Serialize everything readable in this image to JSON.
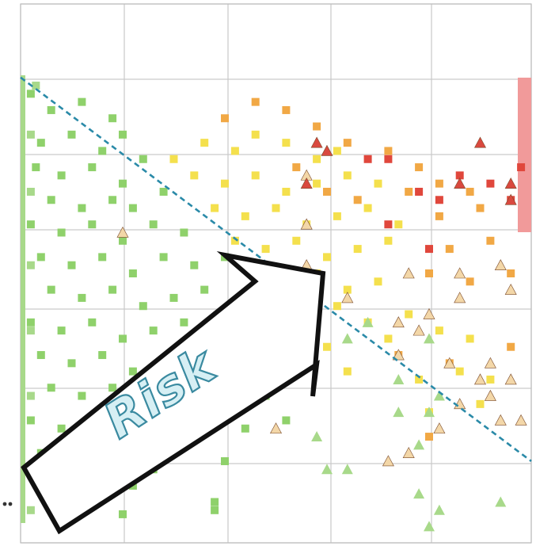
{
  "chart_data": {
    "type": "scatter",
    "title": "",
    "xlabel": "",
    "ylabel": "",
    "grid": true,
    "xlim": [
      0,
      5
    ],
    "ylim": [
      0,
      6.6
    ],
    "colors": {
      "green": "#8fd16b",
      "light_green": "#a8d98a",
      "yellow": "#f4e04d",
      "orange": "#f1a845",
      "red": "#e0473c",
      "triangle_fill_light": "#f3d7a8",
      "triangle_fill_red": "#d9493f",
      "risk_line": "#2a8aa8",
      "red_band": "#f19a9a"
    },
    "annotation": {
      "text": "Risk",
      "arrow_direction": "up-right"
    },
    "threshold_line": {
      "type": "dashed",
      "from": [
        0,
        5.7
      ],
      "to": [
        5,
        1.0
      ]
    },
    "series": [
      {
        "marker": "square",
        "points": [
          [
            0.1,
            5.5,
            "green"
          ],
          [
            0.3,
            5.3,
            "green"
          ],
          [
            0.6,
            5.4,
            "green"
          ],
          [
            0.9,
            5.2,
            "green"
          ],
          [
            0.2,
            4.9,
            "green"
          ],
          [
            0.5,
            5.0,
            "green"
          ],
          [
            0.8,
            4.8,
            "green"
          ],
          [
            1.0,
            5.0,
            "green"
          ],
          [
            0.15,
            4.6,
            "green"
          ],
          [
            0.4,
            4.5,
            "green"
          ],
          [
            0.7,
            4.6,
            "green"
          ],
          [
            1.0,
            4.4,
            "green"
          ],
          [
            1.2,
            4.7,
            "green"
          ],
          [
            0.3,
            4.2,
            "green"
          ],
          [
            0.6,
            4.1,
            "green"
          ],
          [
            0.9,
            4.2,
            "green"
          ],
          [
            1.1,
            4.1,
            "green"
          ],
          [
            1.4,
            4.3,
            "green"
          ],
          [
            0.1,
            3.9,
            "green"
          ],
          [
            0.4,
            3.8,
            "green"
          ],
          [
            0.7,
            3.9,
            "green"
          ],
          [
            1.0,
            3.7,
            "green"
          ],
          [
            1.3,
            3.9,
            "green"
          ],
          [
            1.6,
            3.8,
            "green"
          ],
          [
            0.2,
            3.5,
            "green"
          ],
          [
            0.5,
            3.4,
            "green"
          ],
          [
            0.8,
            3.5,
            "green"
          ],
          [
            1.1,
            3.3,
            "green"
          ],
          [
            1.4,
            3.5,
            "green"
          ],
          [
            1.7,
            3.4,
            "green"
          ],
          [
            2.0,
            3.5,
            "green"
          ],
          [
            0.3,
            3.1,
            "green"
          ],
          [
            0.6,
            3.0,
            "green"
          ],
          [
            0.9,
            3.1,
            "green"
          ],
          [
            1.2,
            2.9,
            "green"
          ],
          [
            1.5,
            3.0,
            "green"
          ],
          [
            1.8,
            3.1,
            "green"
          ],
          [
            2.1,
            2.9,
            "green"
          ],
          [
            0.1,
            2.7,
            "green"
          ],
          [
            0.4,
            2.6,
            "green"
          ],
          [
            0.7,
            2.7,
            "green"
          ],
          [
            1.0,
            2.5,
            "green"
          ],
          [
            1.3,
            2.6,
            "green"
          ],
          [
            1.6,
            2.7,
            "green"
          ],
          [
            1.9,
            2.5,
            "green"
          ],
          [
            2.2,
            2.6,
            "green"
          ],
          [
            0.2,
            2.3,
            "green"
          ],
          [
            0.5,
            2.2,
            "green"
          ],
          [
            0.8,
            2.3,
            "green"
          ],
          [
            1.1,
            2.1,
            "green"
          ],
          [
            1.4,
            2.2,
            "green"
          ],
          [
            1.7,
            2.3,
            "green"
          ],
          [
            2.0,
            2.1,
            "green"
          ],
          [
            2.3,
            2.2,
            "green"
          ],
          [
            0.3,
            1.9,
            "green"
          ],
          [
            0.6,
            1.8,
            "green"
          ],
          [
            0.9,
            1.9,
            "green"
          ],
          [
            1.2,
            1.7,
            "green"
          ],
          [
            1.5,
            1.8,
            "green"
          ],
          [
            1.8,
            1.9,
            "green"
          ],
          [
            2.1,
            1.7,
            "green"
          ],
          [
            2.4,
            1.8,
            "green"
          ],
          [
            0.1,
            1.5,
            "green"
          ],
          [
            0.4,
            1.4,
            "green"
          ],
          [
            0.7,
            1.5,
            "green"
          ],
          [
            1.0,
            1.3,
            "green"
          ],
          [
            1.6,
            1.5,
            "green"
          ],
          [
            2.2,
            1.4,
            "green"
          ],
          [
            2.6,
            1.5,
            "green"
          ],
          [
            0.2,
            1.1,
            "green"
          ],
          [
            0.5,
            1.0,
            "green"
          ],
          [
            0.9,
            1.1,
            "green"
          ],
          [
            1.3,
            0.9,
            "green"
          ],
          [
            2.0,
            1.0,
            "green"
          ],
          [
            0.3,
            0.7,
            "green"
          ],
          [
            0.6,
            0.6,
            "green"
          ],
          [
            1.1,
            0.7,
            "green"
          ],
          [
            1.9,
            0.5,
            "green"
          ],
          [
            0.4,
            0.3,
            "green"
          ],
          [
            1.0,
            0.35,
            "green"
          ],
          [
            1.9,
            0.4,
            "green"
          ],
          [
            1.5,
            4.7,
            "yellow"
          ],
          [
            1.8,
            4.9,
            "yellow"
          ],
          [
            2.1,
            4.8,
            "yellow"
          ],
          [
            2.3,
            5.0,
            "yellow"
          ],
          [
            2.6,
            4.9,
            "yellow"
          ],
          [
            2.9,
            4.7,
            "yellow"
          ],
          [
            3.1,
            4.8,
            "yellow"
          ],
          [
            1.7,
            4.5,
            "yellow"
          ],
          [
            2.0,
            4.4,
            "yellow"
          ],
          [
            2.3,
            4.5,
            "yellow"
          ],
          [
            2.6,
            4.3,
            "yellow"
          ],
          [
            2.9,
            4.4,
            "yellow"
          ],
          [
            3.2,
            4.5,
            "yellow"
          ],
          [
            3.5,
            4.4,
            "yellow"
          ],
          [
            1.9,
            4.1,
            "yellow"
          ],
          [
            2.2,
            4.0,
            "yellow"
          ],
          [
            2.5,
            4.1,
            "yellow"
          ],
          [
            2.8,
            3.9,
            "yellow"
          ],
          [
            3.1,
            4.0,
            "yellow"
          ],
          [
            3.4,
            4.1,
            "yellow"
          ],
          [
            3.7,
            3.9,
            "yellow"
          ],
          [
            2.1,
            3.7,
            "yellow"
          ],
          [
            2.4,
            3.6,
            "yellow"
          ],
          [
            2.7,
            3.7,
            "yellow"
          ],
          [
            3.0,
            3.5,
            "yellow"
          ],
          [
            3.3,
            3.6,
            "yellow"
          ],
          [
            3.6,
            3.7,
            "yellow"
          ],
          [
            2.3,
            3.3,
            "yellow"
          ],
          [
            2.6,
            3.2,
            "yellow"
          ],
          [
            2.9,
            3.3,
            "yellow"
          ],
          [
            3.2,
            3.1,
            "yellow"
          ],
          [
            3.5,
            3.2,
            "yellow"
          ],
          [
            2.5,
            2.9,
            "yellow"
          ],
          [
            2.8,
            2.8,
            "yellow"
          ],
          [
            3.1,
            2.9,
            "yellow"
          ],
          [
            3.4,
            2.7,
            "yellow"
          ],
          [
            3.8,
            2.8,
            "yellow"
          ],
          [
            2.7,
            2.5,
            "yellow"
          ],
          [
            3.0,
            2.4,
            "yellow"
          ],
          [
            3.6,
            2.5,
            "yellow"
          ],
          [
            4.1,
            2.6,
            "yellow"
          ],
          [
            4.4,
            2.5,
            "yellow"
          ],
          [
            3.2,
            2.1,
            "yellow"
          ],
          [
            3.9,
            2.0,
            "yellow"
          ],
          [
            4.3,
            2.1,
            "yellow"
          ],
          [
            4.6,
            2.0,
            "yellow"
          ],
          [
            4.0,
            1.6,
            "yellow"
          ],
          [
            4.5,
            1.7,
            "yellow"
          ],
          [
            2.0,
            5.2,
            "orange"
          ],
          [
            2.3,
            5.4,
            "orange"
          ],
          [
            2.6,
            5.3,
            "orange"
          ],
          [
            2.9,
            5.1,
            "orange"
          ],
          [
            3.2,
            4.9,
            "orange"
          ],
          [
            3.6,
            4.8,
            "orange"
          ],
          [
            3.9,
            4.6,
            "orange"
          ],
          [
            2.7,
            4.6,
            "orange"
          ],
          [
            3.0,
            4.3,
            "orange"
          ],
          [
            3.3,
            4.2,
            "orange"
          ],
          [
            3.8,
            4.3,
            "orange"
          ],
          [
            4.1,
            4.4,
            "orange"
          ],
          [
            4.4,
            4.3,
            "orange"
          ],
          [
            4.1,
            4.0,
            "orange"
          ],
          [
            4.5,
            4.1,
            "orange"
          ],
          [
            4.2,
            3.6,
            "orange"
          ],
          [
            4.6,
            3.7,
            "orange"
          ],
          [
            4.0,
            3.3,
            "orange"
          ],
          [
            4.4,
            3.2,
            "orange"
          ],
          [
            4.8,
            3.3,
            "orange"
          ],
          [
            3.7,
            2.3,
            "orange"
          ],
          [
            4.2,
            2.2,
            "orange"
          ],
          [
            4.8,
            2.4,
            "orange"
          ],
          [
            4.0,
            1.3,
            "orange"
          ],
          [
            3.4,
            4.7,
            "red"
          ],
          [
            3.6,
            4.7,
            "red"
          ],
          [
            3.9,
            4.3,
            "red"
          ],
          [
            4.1,
            4.2,
            "red"
          ],
          [
            4.3,
            4.5,
            "red"
          ],
          [
            4.6,
            4.4,
            "red"
          ],
          [
            4.8,
            4.2,
            "red"
          ],
          [
            4.9,
            4.6,
            "red"
          ],
          [
            3.6,
            3.9,
            "red"
          ],
          [
            4.0,
            3.6,
            "red"
          ],
          [
            0.15,
            5.6,
            "light_green"
          ],
          [
            0.1,
            5.0,
            "light_green"
          ],
          [
            0.1,
            4.3,
            "light_green"
          ],
          [
            0.1,
            3.4,
            "light_green"
          ],
          [
            0.1,
            2.6,
            "light_green"
          ],
          [
            0.1,
            1.8,
            "light_green"
          ],
          [
            0.1,
            0.9,
            "light_green"
          ],
          [
            0.1,
            0.4,
            "light_green"
          ]
        ]
      },
      {
        "marker": "triangle",
        "points": [
          [
            1.0,
            3.8,
            "triangle_fill_light"
          ],
          [
            2.8,
            4.5,
            "triangle_fill_light"
          ],
          [
            2.8,
            3.9,
            "triangle_fill_light"
          ],
          [
            2.8,
            3.4,
            "triangle_fill_light"
          ],
          [
            3.2,
            3.0,
            "triangle_fill_light"
          ],
          [
            3.8,
            3.3,
            "triangle_fill_light"
          ],
          [
            4.3,
            3.3,
            "triangle_fill_light"
          ],
          [
            4.7,
            3.4,
            "triangle_fill_light"
          ],
          [
            4.3,
            3.0,
            "triangle_fill_light"
          ],
          [
            4.8,
            3.1,
            "triangle_fill_light"
          ],
          [
            3.7,
            2.7,
            "triangle_fill_light"
          ],
          [
            3.9,
            2.6,
            "triangle_fill_light"
          ],
          [
            4.0,
            2.8,
            "triangle_fill_light"
          ],
          [
            3.7,
            2.3,
            "triangle_fill_light"
          ],
          [
            4.2,
            2.2,
            "triangle_fill_light"
          ],
          [
            4.6,
            2.2,
            "triangle_fill_light"
          ],
          [
            4.5,
            2.0,
            "triangle_fill_light"
          ],
          [
            4.8,
            2.0,
            "triangle_fill_light"
          ],
          [
            4.3,
            1.7,
            "triangle_fill_light"
          ],
          [
            4.6,
            1.8,
            "triangle_fill_light"
          ],
          [
            4.9,
            1.5,
            "triangle_fill_light"
          ],
          [
            4.7,
            1.5,
            "triangle_fill_light"
          ],
          [
            2.5,
            1.4,
            "triangle_fill_light"
          ],
          [
            3.6,
            1.0,
            "triangle_fill_light"
          ],
          [
            3.8,
            1.1,
            "triangle_fill_light"
          ],
          [
            1.2,
            1.9,
            "triangle_fill_light"
          ],
          [
            4.1,
            1.4,
            "triangle_fill_light"
          ],
          [
            2.9,
            4.9,
            "triangle_fill_red"
          ],
          [
            3.0,
            4.8,
            "triangle_fill_red"
          ],
          [
            2.8,
            4.4,
            "triangle_fill_red"
          ],
          [
            4.3,
            4.4,
            "triangle_fill_red"
          ],
          [
            4.8,
            4.4,
            "triangle_fill_red"
          ],
          [
            4.5,
            4.9,
            "triangle_fill_red"
          ],
          [
            4.8,
            4.2,
            "triangle_fill_red"
          ],
          [
            3.2,
            2.5,
            "light_green"
          ],
          [
            3.4,
            2.7,
            "light_green"
          ],
          [
            3.7,
            2.0,
            "light_green"
          ],
          [
            3.7,
            1.6,
            "light_green"
          ],
          [
            3.9,
            1.2,
            "light_green"
          ],
          [
            4.0,
            1.6,
            "light_green"
          ],
          [
            4.1,
            1.8,
            "light_green"
          ],
          [
            3.9,
            0.6,
            "light_green"
          ],
          [
            4.1,
            0.4,
            "light_green"
          ],
          [
            4.7,
            0.5,
            "light_green"
          ],
          [
            3.0,
            0.9,
            "light_green"
          ],
          [
            2.9,
            1.3,
            "light_green"
          ],
          [
            4.0,
            0.2,
            "light_green"
          ],
          [
            3.2,
            0.9,
            "light_green"
          ],
          [
            4.0,
            2.5,
            "light_green"
          ]
        ]
      }
    ]
  }
}
